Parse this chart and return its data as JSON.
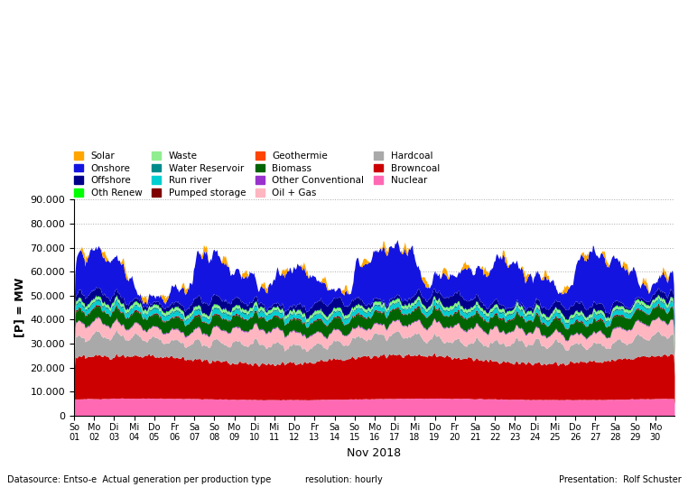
{
  "xlabel": "Nov 2018",
  "ylabel": "[P] = MW",
  "ylim": [
    0,
    90000
  ],
  "yticks": [
    0,
    10000,
    20000,
    30000,
    40000,
    50000,
    60000,
    70000,
    80000,
    90000
  ],
  "ytick_labels": [
    "0",
    "10.000",
    "20.000",
    "30.000",
    "40.000",
    "50.000",
    "60.000",
    "70.000",
    "80.000",
    "90.000"
  ],
  "legend_entries": [
    {
      "label": "Solar",
      "color": "#FFA500"
    },
    {
      "label": "Onshore",
      "color": "#1414E0"
    },
    {
      "label": "Offshore",
      "color": "#00008B"
    },
    {
      "label": "Oth Renew",
      "color": "#00FF00"
    },
    {
      "label": "Waste",
      "color": "#90EE90"
    },
    {
      "label": "Water Reservoir",
      "color": "#008B8B"
    },
    {
      "label": "Run river",
      "color": "#00CED1"
    },
    {
      "label": "Pumped storage",
      "color": "#800000"
    },
    {
      "label": "Geothermie",
      "color": "#FF4500"
    },
    {
      "label": "Biomass",
      "color": "#006400"
    },
    {
      "label": "Other Conventional",
      "color": "#9932CC"
    },
    {
      "label": "Oil + Gas",
      "color": "#FFB6C1"
    },
    {
      "label": "Hardcoal",
      "color": "#A9A9A9"
    },
    {
      "label": "Browncoal",
      "color": "#CC0000"
    },
    {
      "label": "Nuclear",
      "color": "#FF69B4"
    }
  ],
  "stack_order": [
    "Nuclear",
    "Browncoal",
    "Hardcoal",
    "Oil + Gas",
    "Other Conventional",
    "Geothermie",
    "Biomass",
    "Pumped storage",
    "Run river",
    "Water Reservoir",
    "Waste",
    "Oth Renew",
    "Offshore",
    "Onshore",
    "Solar"
  ],
  "colors": {
    "Nuclear": "#FF69B4",
    "Browncoal": "#CC0000",
    "Hardcoal": "#A9A9A9",
    "Oil + Gas": "#FFB6C1",
    "Other Conventional": "#9932CC",
    "Geothermie": "#FF4500",
    "Biomass": "#006400",
    "Pumped storage": "#800000",
    "Run river": "#00CED1",
    "Water Reservoir": "#008B8B",
    "Waste": "#90EE90",
    "Oth Renew": "#00FF00",
    "Offshore": "#00008B",
    "Onshore": "#1414E0",
    "Solar": "#FFA500"
  },
  "n_hours": 720,
  "background_color": "#FFFFFF",
  "day_names_de": [
    "Do",
    "Fr",
    "Sa",
    "So",
    "Mo",
    "Di",
    "Mi"
  ],
  "nov1_weekday_idx": 3,
  "n_days": 30,
  "footer_left": "Datasource: Entso-e  Actual generation per production type",
  "footer_mid": "resolution: hourly",
  "footer_right": "Presentation:  Rolf Schuster"
}
